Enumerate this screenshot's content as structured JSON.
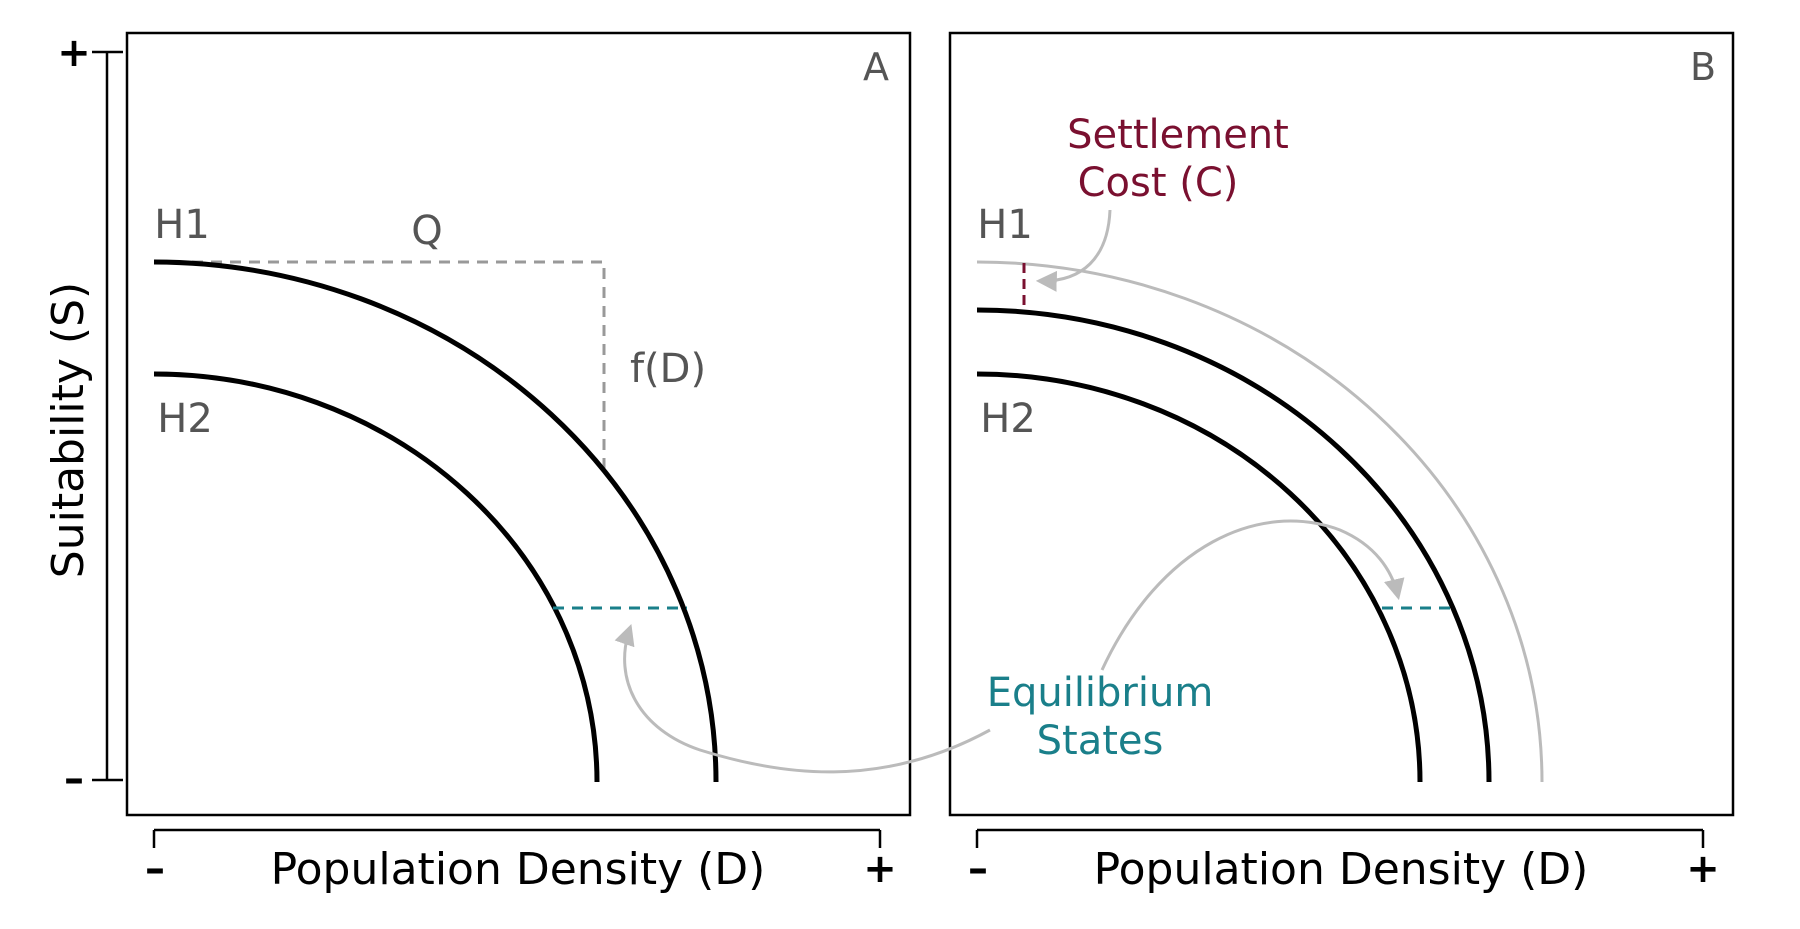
{
  "figure": {
    "y_axis_label": "Suitability (S)",
    "x_axis_label": "Population Density (D)",
    "y_tick_top": "+",
    "y_tick_bottom": "–",
    "x_tick_left": "–",
    "x_tick_right": "+"
  },
  "panel_a": {
    "letter": "A",
    "curve_h1_label": "H1",
    "curve_h2_label": "H2",
    "q_label": "Q",
    "fd_label": "f(D)"
  },
  "panel_b": {
    "letter": "B",
    "curve_h1_label": "H1",
    "curve_h2_label": "H2",
    "settlement_cost_line1": "Settlement",
    "settlement_cost_line2": "Cost (C)",
    "equilibrium_line1": "Equilibrium",
    "equilibrium_line2": "States"
  },
  "colors": {
    "curve": "#000000",
    "guide": "#999999",
    "equilibrium": "#1a7f8a",
    "settlement_cost": "#7a1030",
    "annotation_arrow": "#bbbbbb",
    "label": "#555555"
  }
}
